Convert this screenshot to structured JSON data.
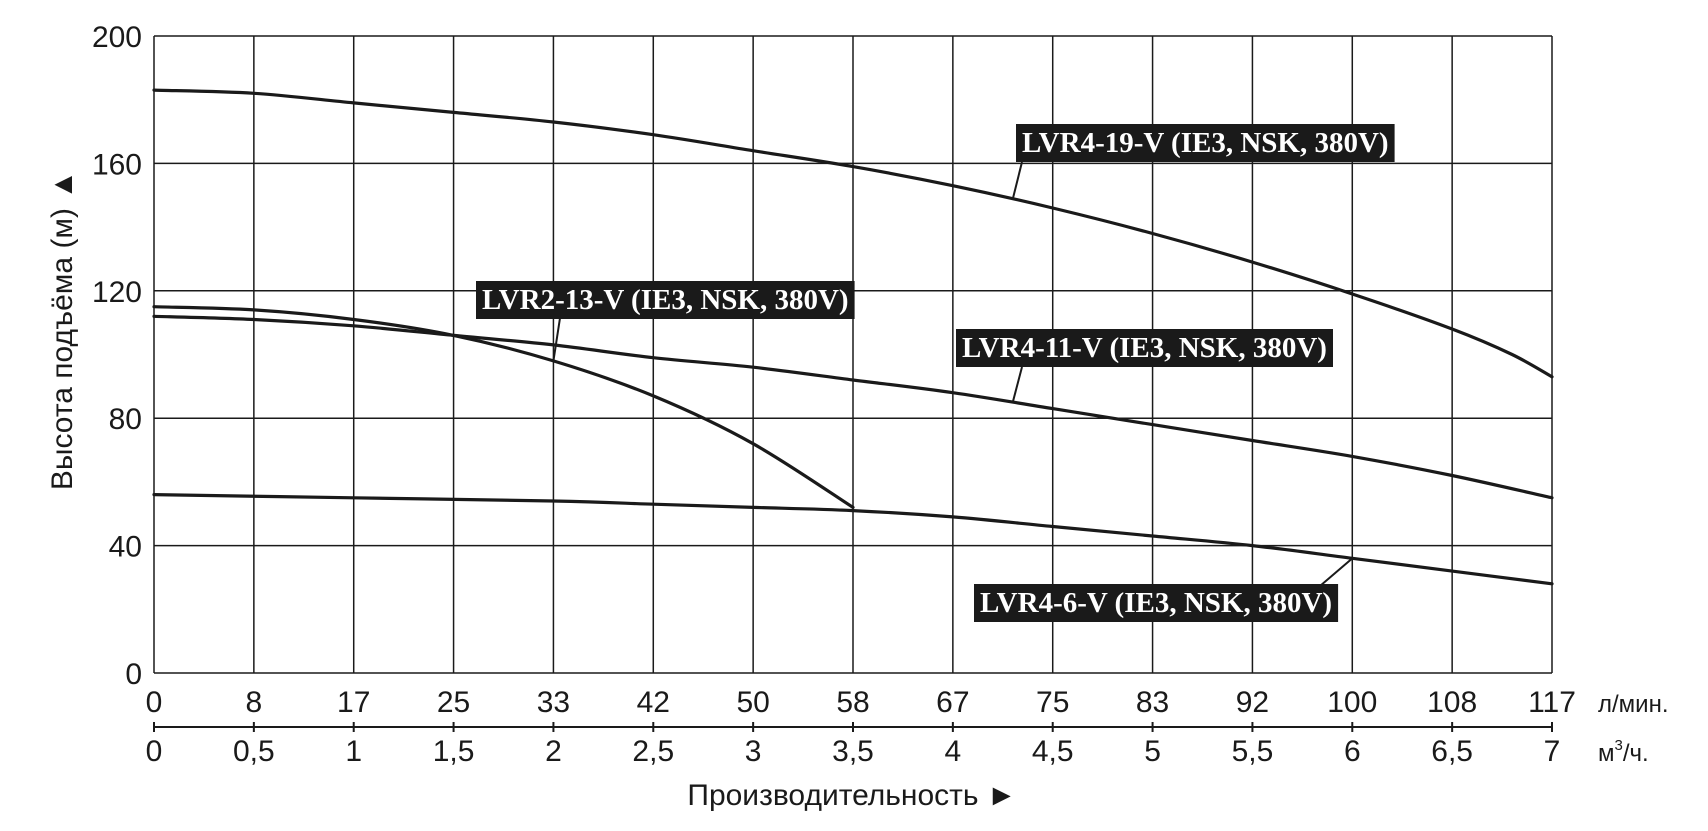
{
  "chart_data": {
    "type": "line",
    "ylabel": "Высота подъёма (м)",
    "ylabel_arrow": "▲",
    "xlabel": "Производительность",
    "xlabel_arrow": "►",
    "ylim": [
      0,
      200
    ],
    "y_ticks": [
      "0",
      "40",
      "80",
      "120",
      "160",
      "200"
    ],
    "xlim": [
      0,
      7
    ],
    "x_ticks_m3h": [
      "0",
      "0,5",
      "1",
      "1,5",
      "2",
      "2,5",
      "3",
      "3,5",
      "4",
      "4,5",
      "5",
      "5,5",
      "6",
      "6,5",
      "7"
    ],
    "x_ticks_lmin": [
      "0",
      "8",
      "17",
      "25",
      "33",
      "42",
      "50",
      "58",
      "67",
      "75",
      "83",
      "92",
      "100",
      "108",
      "117"
    ],
    "x_unit_lmin": "л/мин.",
    "x_unit_m3h_prefix": "м",
    "x_unit_m3h_sup": "3",
    "x_unit_m3h_suffix": "/ч.",
    "grid": true,
    "colors": {
      "line": "#1a1a1a",
      "grid": "#1a1a1a",
      "label_bg": "#1a1a1a",
      "label_text": "#ffffff"
    },
    "series": [
      {
        "name": "LVR4-19-V (IE3, NSK, 380V)",
        "x": [
          0,
          0.5,
          1,
          1.5,
          2,
          2.5,
          3,
          3.5,
          4,
          4.5,
          5,
          5.5,
          6,
          6.5,
          6.8,
          7
        ],
        "y": [
          183,
          182,
          179,
          176,
          173,
          169,
          164,
          159,
          153,
          146,
          138,
          129,
          119,
          108,
          100,
          93
        ]
      },
      {
        "name": "LVR2-13-V (IE3, NSK, 380V)",
        "x": [
          0,
          0.5,
          1,
          1.5,
          2,
          2.5,
          3,
          3.5
        ],
        "y": [
          115,
          114,
          111,
          106,
          98,
          87,
          72,
          52
        ]
      },
      {
        "name": "LVR4-11-V (IE3, NSK, 380V)",
        "x": [
          0,
          0.5,
          1,
          1.5,
          2,
          2.5,
          3,
          3.5,
          4,
          4.5,
          5,
          5.5,
          6,
          6.5,
          7
        ],
        "y": [
          112,
          111,
          109,
          106,
          103,
          99,
          96,
          92,
          88,
          83,
          78,
          73,
          68,
          62,
          55
        ]
      },
      {
        "name": "LVR4-6-V (IE3, NSK, 380V)",
        "x": [
          0,
          1,
          2,
          2.5,
          3,
          3.5,
          4,
          4.5,
          5,
          5.5,
          6,
          6.5,
          7
        ],
        "y": [
          56,
          55,
          54,
          53,
          52,
          51,
          49,
          46,
          43,
          40,
          36,
          32,
          28
        ]
      }
    ]
  }
}
